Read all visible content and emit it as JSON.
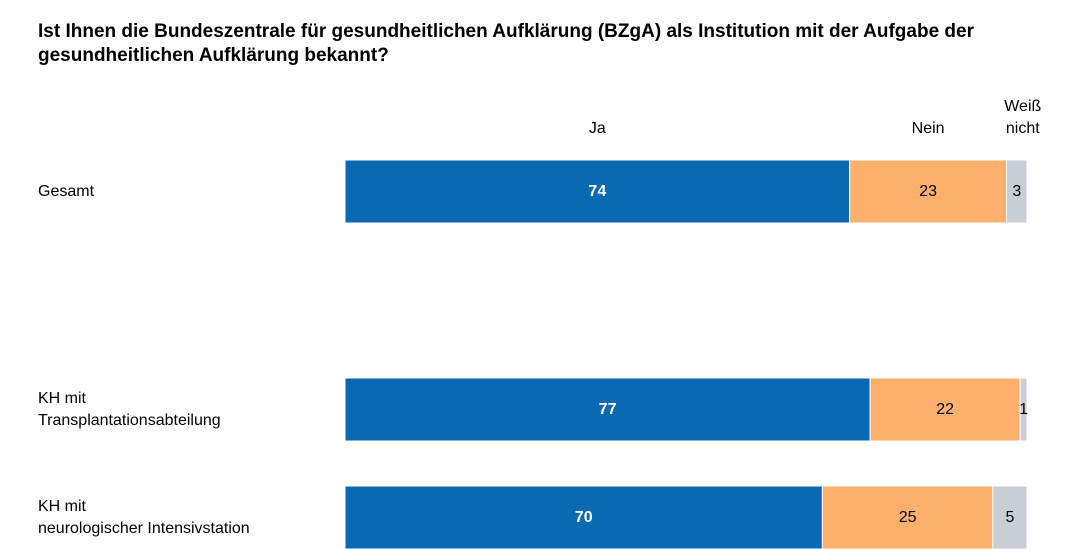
{
  "chart_data": {
    "type": "stacked-bar",
    "title": "Ist Ihnen die Bundeszentrale für gesundheitlichen Aufklärung (BZgA) als Institution mit der Aufgabe der gesundheitlichen Aufklärung bekannt?",
    "categories": [
      "Gesamt",
      "KH mit\nTransplantationsabteilung",
      "KH mit\nneurologischer Intensivstation"
    ],
    "series": [
      {
        "name": "Ja",
        "color": "#0a69b3",
        "values": [
          74,
          77,
          70
        ]
      },
      {
        "name": "Nein",
        "color": "#fdb06b",
        "values": [
          23,
          22,
          25
        ]
      },
      {
        "name": "Weiß\nnicht",
        "color": "#c9ced4",
        "values": [
          3,
          1,
          5
        ]
      }
    ]
  }
}
